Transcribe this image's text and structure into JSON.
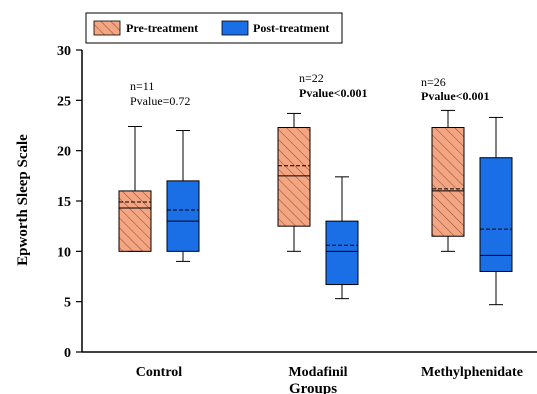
{
  "chart_data": {
    "type": "box",
    "title": "",
    "xlabel": "Groups",
    "ylabel": "Epworth Sleep Scale",
    "ylim": [
      0,
      30
    ],
    "yticks": [
      0,
      5,
      10,
      15,
      20,
      25,
      30
    ],
    "grid": false,
    "legend_position": "top-left",
    "categories": [
      "Control",
      "Modafinil",
      "Methylphenidate"
    ],
    "series": [
      {
        "name": "Pre-treatment",
        "color": "#f4a582",
        "hatch": "diagonal",
        "boxes": [
          {
            "whisker_low": 10,
            "q1": 10,
            "median": 14.3,
            "mean": 14.9,
            "q3": 16,
            "whisker_high": 22.4
          },
          {
            "whisker_low": 10,
            "q1": 12.5,
            "median": 17.5,
            "mean": 18.5,
            "q3": 22.3,
            "whisker_high": 23.7
          },
          {
            "whisker_low": 10,
            "q1": 11.5,
            "median": 16,
            "mean": 16.2,
            "q3": 22.3,
            "whisker_high": 24
          }
        ]
      },
      {
        "name": "Post-treatment",
        "color": "#1a6fe6",
        "hatch": "none",
        "boxes": [
          {
            "whisker_low": 9,
            "q1": 10,
            "median": 13,
            "mean": 14.1,
            "q3": 17,
            "whisker_high": 22
          },
          {
            "whisker_low": 5.3,
            "q1": 6.7,
            "median": 10,
            "mean": 10.6,
            "q3": 13,
            "whisker_high": 17.4
          },
          {
            "whisker_low": 4.7,
            "q1": 8,
            "median": 9.6,
            "mean": 12.2,
            "q3": 19.3,
            "whisker_high": 23.3
          }
        ]
      }
    ],
    "annotations": [
      {
        "n": "n=11",
        "pvalue": "Pvalue=0.72",
        "bold_pvalue": false
      },
      {
        "n": "n=22",
        "pvalue": "Pvalue<0.001",
        "bold_pvalue": true
      },
      {
        "n": "n=26",
        "pvalue": "Pvalue<0.001",
        "bold_pvalue": true
      }
    ]
  }
}
